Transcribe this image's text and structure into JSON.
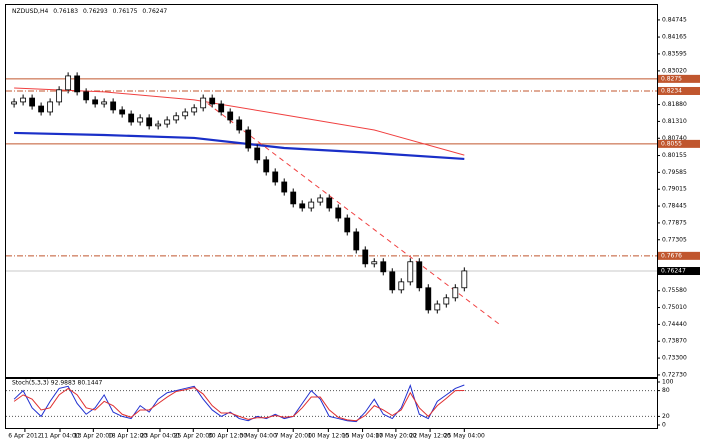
{
  "chart_data": {
    "type": "candlestick",
    "title": "NZDUSD,H4",
    "header_values": [
      0.76183,
      0.76293,
      0.76175,
      0.76247
    ],
    "xlim": [
      -0.9,
      71.4
    ],
    "ylim": [
      0.7266,
      0.8525
    ],
    "open": [
      0.819,
      0.8197,
      0.821,
      0.8183,
      0.8163,
      0.8197,
      0.8238,
      0.8285,
      0.8231,
      0.8204,
      0.819,
      0.8197,
      0.817,
      0.8156,
      0.8129,
      0.8143,
      0.8116,
      0.8122,
      0.8136,
      0.815,
      0.8163,
      0.8177,
      0.821,
      0.819,
      0.8163,
      0.8136,
      0.8102,
      0.8041,
      0.8001,
      0.796,
      0.7926,
      0.7892,
      0.7852,
      0.7838,
      0.7858,
      0.7872,
      0.7838,
      0.7804,
      0.7757,
      0.7696,
      0.7649,
      0.7656,
      0.7622,
      0.7561,
      0.7588,
      0.7656,
      0.7568,
      0.7493,
      0.7513,
      0.7534,
      0.7568
    ],
    "high": [
      0.8209,
      0.8222,
      0.8222,
      0.8195,
      0.8209,
      0.825,
      0.8297,
      0.8297,
      0.8243,
      0.8216,
      0.8209,
      0.8209,
      0.8182,
      0.8168,
      0.8155,
      0.8155,
      0.8134,
      0.8148,
      0.8162,
      0.8175,
      0.8189,
      0.8222,
      0.8222,
      0.8202,
      0.8175,
      0.8148,
      0.8114,
      0.8053,
      0.8013,
      0.7972,
      0.7938,
      0.7904,
      0.7864,
      0.787,
      0.7884,
      0.7884,
      0.785,
      0.7816,
      0.7769,
      0.7708,
      0.7668,
      0.7668,
      0.7634,
      0.76,
      0.7668,
      0.7668,
      0.758,
      0.7525,
      0.7546,
      0.758,
      0.7637
    ],
    "low": [
      0.8178,
      0.8185,
      0.8171,
      0.8151,
      0.8151,
      0.8185,
      0.8226,
      0.8219,
      0.8192,
      0.8178,
      0.8178,
      0.8158,
      0.8144,
      0.8117,
      0.8117,
      0.8104,
      0.8104,
      0.811,
      0.8124,
      0.8138,
      0.8151,
      0.8165,
      0.8178,
      0.8151,
      0.8124,
      0.809,
      0.8029,
      0.7989,
      0.7948,
      0.7914,
      0.788,
      0.784,
      0.7826,
      0.7826,
      0.7846,
      0.7826,
      0.7792,
      0.7745,
      0.7684,
      0.7637,
      0.7637,
      0.761,
      0.7549,
      0.7549,
      0.7576,
      0.7556,
      0.7481,
      0.7481,
      0.7501,
      0.7522,
      0.7556
    ],
    "close": [
      0.8197,
      0.821,
      0.8183,
      0.8163,
      0.8197,
      0.8238,
      0.8285,
      0.8231,
      0.8204,
      0.819,
      0.8197,
      0.817,
      0.8156,
      0.8129,
      0.8143,
      0.8116,
      0.8122,
      0.8136,
      0.815,
      0.8163,
      0.8177,
      0.821,
      0.819,
      0.8163,
      0.8136,
      0.8102,
      0.8041,
      0.8001,
      0.796,
      0.7926,
      0.7892,
      0.7852,
      0.7838,
      0.7858,
      0.7872,
      0.7838,
      0.7804,
      0.7757,
      0.7696,
      0.7649,
      0.7656,
      0.7622,
      0.7561,
      0.7588,
      0.7656,
      0.7568,
      0.7493,
      0.7513,
      0.7534,
      0.7568,
      0.7625
    ],
    "yticks": [
      {
        "value": 0.84745,
        "label": "0.84745"
      },
      {
        "value": 0.84165,
        "label": "0.84165"
      },
      {
        "value": 0.83595,
        "label": "0.83595"
      },
      {
        "value": 0.8302,
        "label": "0.83020"
      },
      {
        "value": 0.8188,
        "label": "0.81880"
      },
      {
        "value": 0.8131,
        "label": "0.81310"
      },
      {
        "value": 0.8074,
        "label": "0.80740"
      },
      {
        "value": 0.80155,
        "label": "0.80155"
      },
      {
        "value": 0.79585,
        "label": "0.79585"
      },
      {
        "value": 0.79015,
        "label": "0.79015"
      },
      {
        "value": 0.78445,
        "label": "0.78445"
      },
      {
        "value": 0.77875,
        "label": "0.77875"
      },
      {
        "value": 0.77305,
        "label": "0.77305"
      },
      {
        "value": 0.7558,
        "label": "0.75580"
      },
      {
        "value": 0.7501,
        "label": "0.75010"
      },
      {
        "value": 0.7444,
        "label": "0.74440"
      },
      {
        "value": 0.7387,
        "label": "0.73870"
      },
      {
        "value": 0.733,
        "label": "0.73300"
      },
      {
        "value": 0.7273,
        "label": "0.72730"
      }
    ],
    "xticks": [
      {
        "value": 1.2,
        "label": "6 Apr 2012"
      },
      {
        "value": 5.1,
        "label": "11 Apr 04:00"
      },
      {
        "value": 8.8,
        "label": "13 Apr 20:00"
      },
      {
        "value": 12.6,
        "label": "18 Apr 12:00"
      },
      {
        "value": 16.2,
        "label": "23 Apr 04:00"
      },
      {
        "value": 19.9,
        "label": "25 Apr 20:00"
      },
      {
        "value": 23.7,
        "label": "30 Apr 12:00"
      },
      {
        "value": 27.1,
        "label": "3 May 04:00"
      },
      {
        "value": 31.0,
        "label": "7 May 20:00"
      },
      {
        "value": 34.9,
        "label": "10 May 12:00"
      },
      {
        "value": 38.7,
        "label": "15 May 04:00"
      },
      {
        "value": 42.4,
        "label": "17 May 20:00"
      },
      {
        "value": 46.2,
        "label": "22 May 12:00"
      },
      {
        "value": 50.0,
        "label": "25 May 04:00"
      }
    ],
    "levels": [
      {
        "value": 0.8275,
        "color": "#c0562e",
        "style": "solid"
      },
      {
        "value": 0.8234,
        "color": "#c0562e",
        "style": "dashdot"
      },
      {
        "value": 0.8055,
        "color": "#c0562e",
        "style": "solid"
      },
      {
        "value": 0.7676,
        "color": "#c0562e",
        "style": "dashdot"
      },
      {
        "value": 0.76247,
        "color": "#000000",
        "style": "current"
      }
    ],
    "lines": [
      {
        "x": [
          0,
          10,
          20,
          30,
          40,
          50
        ],
        "values": [
          0.8244,
          0.8231,
          0.8204,
          0.8153,
          0.8102,
          0.8017
        ],
        "color": "#f04040",
        "width": 1,
        "dash": false
      },
      {
        "x": [
          0,
          10,
          20,
          30,
          40,
          50
        ],
        "values": [
          0.8092,
          0.8085,
          0.8075,
          0.8041,
          0.8024,
          0.8004
        ],
        "color": "#1a2fc8",
        "width": 2.2,
        "dash": false
      },
      {
        "x": [
          20.7,
          54
        ],
        "values": [
          0.821,
          0.7442
        ],
        "color": "#f04040",
        "width": 1,
        "dash": true
      }
    ],
    "oscillator": {
      "title": "Stoch(5,3,3) 92.9883 80.1447",
      "ylim": [
        0,
        100
      ],
      "yticks": [
        0,
        20,
        80,
        100
      ],
      "levels": [
        20,
        80
      ],
      "series": [
        {
          "color": "#2030d0",
          "values": [
            60,
            80,
            40,
            20,
            55,
            85,
            90,
            50,
            25,
            40,
            70,
            30,
            20,
            15,
            45,
            30,
            60,
            75,
            80,
            85,
            90,
            60,
            35,
            20,
            30,
            15,
            10,
            20,
            15,
            25,
            15,
            20,
            50,
            80,
            60,
            20,
            15,
            10,
            8,
            30,
            60,
            25,
            15,
            40,
            92,
            25,
            15,
            55,
            70,
            85,
            92.9883
          ]
        },
        {
          "color": "#e03030",
          "values": [
            55,
            70,
            60,
            35,
            40,
            70,
            85,
            70,
            40,
            35,
            55,
            45,
            25,
            18,
            35,
            35,
            50,
            65,
            78,
            82,
            87,
            72,
            45,
            28,
            28,
            20,
            13,
            17,
            17,
            22,
            18,
            20,
            40,
            65,
            65,
            35,
            18,
            12,
            10,
            22,
            45,
            35,
            22,
            35,
            75,
            40,
            20,
            45,
            62,
            80,
            80.1447
          ]
        }
      ]
    }
  }
}
